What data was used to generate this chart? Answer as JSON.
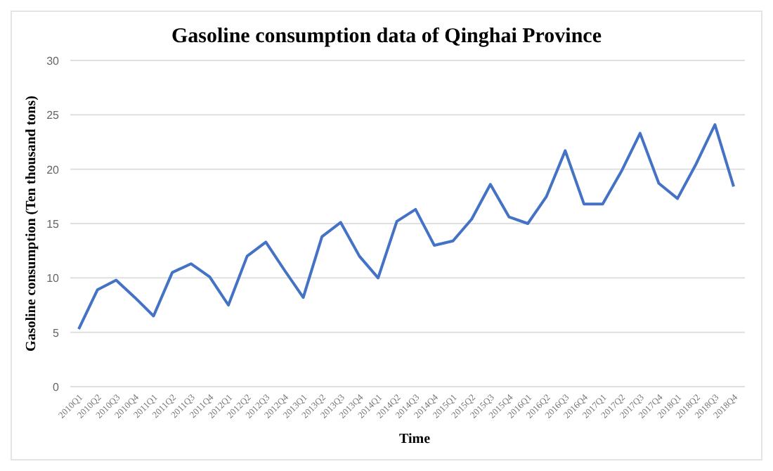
{
  "chart_data": {
    "type": "line",
    "title": "Gasoline consumption data of Qinghai Province",
    "xlabel": "Time",
    "ylabel": "Gasoline consumption (Ten thousand tons)",
    "categories": [
      "2010Q1",
      "2010Q2",
      "2010Q3",
      "2010Q4",
      "2011Q1",
      "2011Q2",
      "2011Q3",
      "2011Q4",
      "2012Q1",
      "2012Q2",
      "2012Q3",
      "2012Q4",
      "2013Q1",
      "2013Q2",
      "2013Q3",
      "2013Q4",
      "2014Q1",
      "2014Q2",
      "2014Q3",
      "2014Q4",
      "2015Q1",
      "2015Q2",
      "2015Q3",
      "2015Q4",
      "2016Q1",
      "2016Q2",
      "2016Q3",
      "2016Q4",
      "2017Q1",
      "2017Q2",
      "2017Q3",
      "2017Q4",
      "2018Q1",
      "2018Q2",
      "2018Q3",
      "2018Q4"
    ],
    "series": [
      {
        "color": "#4472c4",
        "values": [
          5.3,
          8.9,
          9.8,
          8.2,
          6.5,
          10.5,
          11.3,
          10.1,
          7.5,
          12.0,
          13.3,
          10.7,
          8.2,
          13.8,
          15.1,
          12.0,
          10.0,
          15.2,
          16.3,
          13.0,
          13.4,
          15.4,
          18.6,
          15.6,
          15.0,
          17.5,
          21.7,
          16.8,
          16.8,
          19.8,
          23.3,
          18.7,
          17.3,
          20.5,
          24.1,
          18.4
        ]
      }
    ],
    "ylim": [
      0,
      30
    ],
    "yticks": [
      0,
      5,
      10,
      15,
      20,
      25,
      30
    ],
    "grid": "y",
    "marker": "none",
    "line_style": "solid"
  }
}
